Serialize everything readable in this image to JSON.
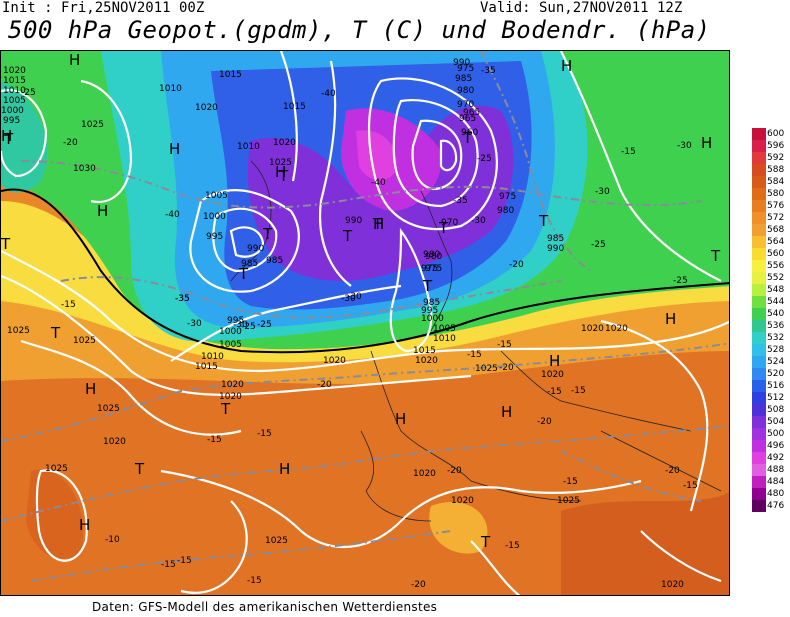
{
  "header": {
    "init": "Init : Fri,25NOV2011 00Z",
    "valid": "Valid: Sun,27NOV2011 12Z",
    "title": "500 hPa Geopot.(gpdm), T (C) und Bodendr. (hPa)"
  },
  "footer": "Daten: GFS-Modell des amerikanischen Wetterdienstes",
  "colorbar": {
    "labels": [
      "600",
      "596",
      "592",
      "588",
      "584",
      "580",
      "576",
      "572",
      "568",
      "564",
      "560",
      "556",
      "552",
      "548",
      "544",
      "540",
      "536",
      "532",
      "528",
      "524",
      "520",
      "516",
      "512",
      "508",
      "504",
      "500",
      "496",
      "492",
      "488",
      "484",
      "480",
      "476"
    ],
    "colors": [
      "#c8103a",
      "#d8204a",
      "#e03a3a",
      "#d84a20",
      "#d85a18",
      "#e06c18",
      "#e87e20",
      "#f09028",
      "#f0a030",
      "#f8c030",
      "#f8dc30",
      "#f8f040",
      "#e8f040",
      "#b8f040",
      "#70e040",
      "#40d050",
      "#30c890",
      "#30d0c8",
      "#30c0e8",
      "#30a8f0",
      "#3088f0",
      "#2860e8",
      "#3040e0",
      "#5030d8",
      "#8030d8",
      "#a030e0",
      "#c030e0",
      "#e040e0",
      "#e060e0",
      "#c020c0",
      "#900090",
      "#600060"
    ]
  },
  "map_labels": {
    "highs": [
      "H",
      "H",
      "H",
      "H",
      "H",
      "H",
      "H",
      "H",
      "H",
      "H",
      "H",
      "H",
      "H",
      "H",
      "H"
    ],
    "lows": [
      "T",
      "T",
      "T",
      "T",
      "T",
      "T",
      "T",
      "T",
      "T",
      "T",
      "T",
      "T",
      "T",
      "T",
      "T",
      "T"
    ],
    "isobars": [
      "1020",
      "1015",
      "1010",
      "1005",
      "1000",
      "995",
      "1025",
      "1025",
      "1015",
      "1010",
      "1020",
      "1015",
      "1010",
      "1020",
      "1025",
      "1030",
      "1005",
      "1000",
      "995",
      "990",
      "985",
      "1020",
      "990",
      "985",
      "990",
      "980",
      "975",
      "970",
      "965",
      "960",
      "980",
      "975",
      "985",
      "990",
      "985",
      "980",
      "975",
      "970",
      "995",
      "1000",
      "1005",
      "1010",
      "1015",
      "1025",
      "1025",
      "1020",
      "1020",
      "1020",
      "1025",
      "1020",
      "1020",
      "1020",
      "1025",
      "1020",
      "1025",
      "1020",
      "1020",
      "1015",
      "1010",
      "1005",
      "1000",
      "995",
      "985",
      "980",
      "975",
      "965",
      "1025",
      "1020"
    ],
    "temps": [
      "-25",
      "-20",
      "-40",
      "-35",
      "-15",
      "-30",
      "-25",
      "-40",
      "-40",
      "-35",
      "-30",
      "-25",
      "-20",
      "-25",
      "-30",
      "-35",
      "-30",
      "-15",
      "-30",
      "-30",
      "-25",
      "-20",
      "-15",
      "-15",
      "-20",
      "-15",
      "-10",
      "-15",
      "-15",
      "-20",
      "-15",
      "-15",
      "-20",
      "-15",
      "-15",
      "-20",
      "-15",
      "-15",
      "-15",
      "-20",
      "-35",
      "-30",
      "-25"
    ]
  }
}
